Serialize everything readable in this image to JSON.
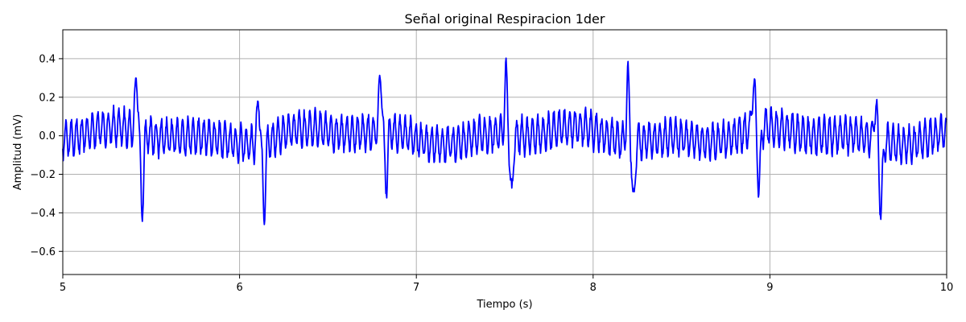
{
  "chart_data": {
    "type": "line",
    "title": "Señal original Respiracion 1der",
    "xlabel": "Tiempo (s)",
    "ylabel": "Amplitud (mV)",
    "xlim": [
      5,
      10
    ],
    "ylim": [
      -0.72,
      0.55
    ],
    "xticks": [
      5,
      6,
      7,
      8,
      9,
      10
    ],
    "yticks": [
      -0.6,
      -0.4,
      -0.2,
      0.0,
      0.2,
      0.4
    ],
    "xtick_labels": [
      "5",
      "6",
      "7",
      "8",
      "9",
      "10"
    ],
    "ytick_labels": [
      "−0.6",
      "−0.4",
      "−0.2",
      "0.0",
      "0.2",
      "0.4"
    ],
    "grid": true,
    "series": [
      {
        "color": "#0000ff",
        "beats": [
          {
            "t": 5.43,
            "peak": 0.34,
            "trough": -0.42
          },
          {
            "t": 6.12,
            "peak": 0.28,
            "trough": -0.37
          },
          {
            "t": 6.81,
            "peak": 0.34,
            "trough": -0.29
          },
          {
            "t": 7.52,
            "peak": 0.35,
            "trough": -0.35
          },
          {
            "t": 8.21,
            "peak": 0.36,
            "trough": -0.35
          },
          {
            "t": 8.92,
            "peak": 0.29,
            "trough": -0.32
          },
          {
            "t": 9.61,
            "peak": 0.23,
            "trough": -0.38
          }
        ],
        "baseline_amplitude": 0.1,
        "noise_period": 0.03
      }
    ]
  }
}
